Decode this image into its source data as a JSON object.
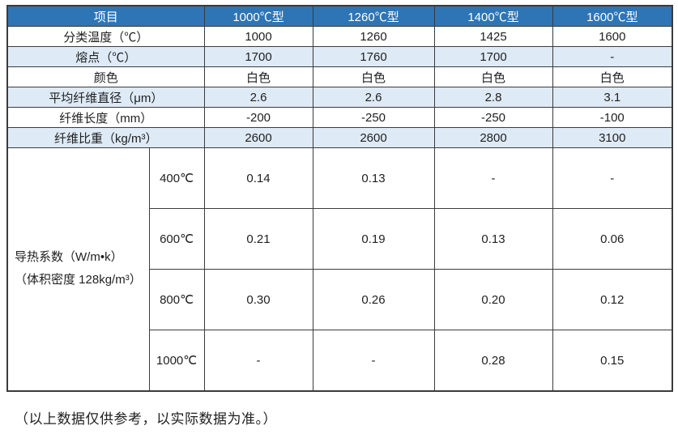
{
  "table": {
    "header": {
      "item_label": "项目",
      "types": [
        "1000℃型",
        "1260℃型",
        "1400℃型",
        "1600℃型"
      ]
    },
    "property_rows": [
      {
        "label": "分类温度（℃）",
        "striped": false,
        "values": [
          "1000",
          "1260",
          "1425",
          "1600"
        ]
      },
      {
        "label": "熔点（℃）",
        "striped": true,
        "values": [
          "1700",
          "1760",
          "1700",
          "-"
        ]
      },
      {
        "label": "颜色",
        "striped": false,
        "values": [
          "白色",
          "白色",
          "白色",
          "白色"
        ]
      },
      {
        "label": "平均纤维直径（μm）",
        "striped": true,
        "values": [
          "2.6",
          "2.6",
          "2.8",
          "3.1"
        ]
      },
      {
        "label": "纤维长度（mm）",
        "striped": false,
        "values": [
          "-200",
          "-250",
          "-250",
          "-100"
        ]
      },
      {
        "label": "纤维比重（kg/m³）",
        "striped": true,
        "values": [
          "2600",
          "2600",
          "2800",
          "3100"
        ]
      }
    ],
    "thermal_section": {
      "label_line1": "导热系数（W/m•k）",
      "label_line2": "（体积密度 128kg/m³）",
      "rows": [
        {
          "temp": "400℃",
          "values": [
            "0.14",
            "0.13",
            "-",
            "-"
          ]
        },
        {
          "temp": "600℃",
          "values": [
            "0.21",
            "0.19",
            "0.13",
            "0.06"
          ]
        },
        {
          "temp": "800℃",
          "values": [
            "0.30",
            "0.26",
            "0.20",
            "0.12"
          ]
        },
        {
          "temp": "1000℃",
          "values": [
            "-",
            "-",
            "0.28",
            "0.15"
          ]
        }
      ]
    }
  },
  "footer_note": "（以上数据仅供参考，以实际数据为准。）",
  "colors": {
    "header_bg": "#2E75B6",
    "stripe_bg": "#DEEAF6",
    "border": "#3b3b3b"
  }
}
